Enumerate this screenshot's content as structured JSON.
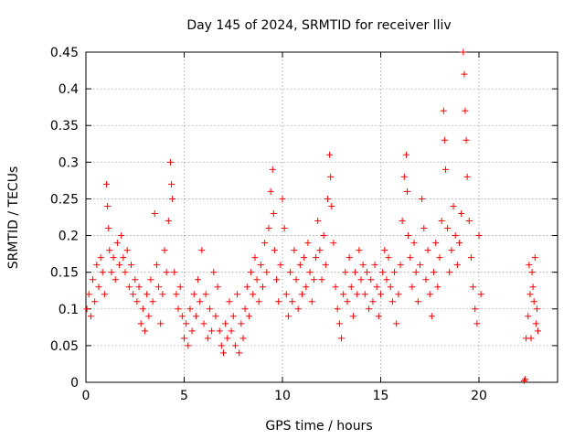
{
  "chart_data": {
    "type": "scatter",
    "title": "Day 145 of 2024, SRMTID for receiver lliv",
    "xlabel": "GPS time / hours",
    "ylabel": "SRMTID / TECUs",
    "xlim": [
      0,
      24
    ],
    "ylim": [
      0,
      0.45
    ],
    "xticks": [
      0,
      5,
      10,
      15,
      20
    ],
    "yticks": [
      0,
      0.05,
      0.1,
      0.15,
      0.2,
      0.25,
      0.3,
      0.35,
      0.4,
      0.45
    ],
    "xtick_labels": [
      "0",
      "5",
      "10",
      "15",
      "20"
    ],
    "ytick_labels": [
      "0",
      "0.05",
      "0.1",
      "0.15",
      "0.2",
      "0.25",
      "0.3",
      "0.35",
      "0.4",
      "0.45"
    ],
    "grid": true,
    "marker": "+",
    "color": "#ff0000",
    "series": [
      {
        "name": "SRMTID",
        "points": [
          [
            0.05,
            0.1
          ],
          [
            0.15,
            0.12
          ],
          [
            0.25,
            0.09
          ],
          [
            0.35,
            0.14
          ],
          [
            0.45,
            0.11
          ],
          [
            0.55,
            0.16
          ],
          [
            0.65,
            0.13
          ],
          [
            0.75,
            0.17
          ],
          [
            0.85,
            0.15
          ],
          [
            0.95,
            0.12
          ],
          [
            1.05,
            0.27
          ],
          [
            1.1,
            0.24
          ],
          [
            1.15,
            0.21
          ],
          [
            1.2,
            0.18
          ],
          [
            1.3,
            0.15
          ],
          [
            1.4,
            0.17
          ],
          [
            1.5,
            0.14
          ],
          [
            1.6,
            0.19
          ],
          [
            1.7,
            0.16
          ],
          [
            1.8,
            0.2
          ],
          [
            1.9,
            0.17
          ],
          [
            2.0,
            0.15
          ],
          [
            2.1,
            0.18
          ],
          [
            2.2,
            0.13
          ],
          [
            2.3,
            0.16
          ],
          [
            2.4,
            0.12
          ],
          [
            2.5,
            0.14
          ],
          [
            2.6,
            0.11
          ],
          [
            2.7,
            0.13
          ],
          [
            2.8,
            0.08
          ],
          [
            2.9,
            0.1
          ],
          [
            3.0,
            0.07
          ],
          [
            3.1,
            0.12
          ],
          [
            3.2,
            0.09
          ],
          [
            3.3,
            0.14
          ],
          [
            3.4,
            0.11
          ],
          [
            3.5,
            0.23
          ],
          [
            3.6,
            0.16
          ],
          [
            3.7,
            0.13
          ],
          [
            3.8,
            0.08
          ],
          [
            3.9,
            0.12
          ],
          [
            4.0,
            0.18
          ],
          [
            4.1,
            0.15
          ],
          [
            4.2,
            0.22
          ],
          [
            4.3,
            0.3
          ],
          [
            4.35,
            0.27
          ],
          [
            4.4,
            0.25
          ],
          [
            4.5,
            0.15
          ],
          [
            4.6,
            0.12
          ],
          [
            4.7,
            0.1
          ],
          [
            4.8,
            0.13
          ],
          [
            4.9,
            0.09
          ],
          [
            5.0,
            0.06
          ],
          [
            5.1,
            0.08
          ],
          [
            5.2,
            0.05
          ],
          [
            5.3,
            0.1
          ],
          [
            5.4,
            0.07
          ],
          [
            5.5,
            0.12
          ],
          [
            5.6,
            0.09
          ],
          [
            5.7,
            0.14
          ],
          [
            5.8,
            0.11
          ],
          [
            5.9,
            0.18
          ],
          [
            6.0,
            0.08
          ],
          [
            6.1,
            0.12
          ],
          [
            6.2,
            0.06
          ],
          [
            6.3,
            0.1
          ],
          [
            6.4,
            0.07
          ],
          [
            6.5,
            0.15
          ],
          [
            6.6,
            0.09
          ],
          [
            6.7,
            0.13
          ],
          [
            6.8,
            0.07
          ],
          [
            6.9,
            0.05
          ],
          [
            7.0,
            0.04
          ],
          [
            7.1,
            0.08
          ],
          [
            7.2,
            0.06
          ],
          [
            7.3,
            0.11
          ],
          [
            7.4,
            0.07
          ],
          [
            7.5,
            0.09
          ],
          [
            7.6,
            0.05
          ],
          [
            7.7,
            0.12
          ],
          [
            7.8,
            0.04
          ],
          [
            7.9,
            0.08
          ],
          [
            8.0,
            0.06
          ],
          [
            8.1,
            0.1
          ],
          [
            8.2,
            0.13
          ],
          [
            8.3,
            0.09
          ],
          [
            8.4,
            0.15
          ],
          [
            8.5,
            0.12
          ],
          [
            8.6,
            0.17
          ],
          [
            8.7,
            0.14
          ],
          [
            8.8,
            0.11
          ],
          [
            8.9,
            0.16
          ],
          [
            9.0,
            0.13
          ],
          [
            9.1,
            0.19
          ],
          [
            9.2,
            0.15
          ],
          [
            9.3,
            0.21
          ],
          [
            9.4,
            0.26
          ],
          [
            9.5,
            0.29
          ],
          [
            9.55,
            0.23
          ],
          [
            9.6,
            0.18
          ],
          [
            9.7,
            0.14
          ],
          [
            9.8,
            0.11
          ],
          [
            9.9,
            0.16
          ],
          [
            10.0,
            0.25
          ],
          [
            10.1,
            0.21
          ],
          [
            10.2,
            0.12
          ],
          [
            10.3,
            0.09
          ],
          [
            10.4,
            0.15
          ],
          [
            10.5,
            0.11
          ],
          [
            10.6,
            0.18
          ],
          [
            10.7,
            0.14
          ],
          [
            10.8,
            0.1
          ],
          [
            10.9,
            0.16
          ],
          [
            11.0,
            0.12
          ],
          [
            11.1,
            0.17
          ],
          [
            11.2,
            0.13
          ],
          [
            11.3,
            0.19
          ],
          [
            11.4,
            0.15
          ],
          [
            11.5,
            0.11
          ],
          [
            11.6,
            0.14
          ],
          [
            11.7,
            0.17
          ],
          [
            11.8,
            0.22
          ],
          [
            11.9,
            0.18
          ],
          [
            12.0,
            0.14
          ],
          [
            12.1,
            0.2
          ],
          [
            12.2,
            0.16
          ],
          [
            12.3,
            0.25
          ],
          [
            12.4,
            0.31
          ],
          [
            12.45,
            0.28
          ],
          [
            12.5,
            0.24
          ],
          [
            12.6,
            0.19
          ],
          [
            12.7,
            0.13
          ],
          [
            12.8,
            0.1
          ],
          [
            12.9,
            0.08
          ],
          [
            13.0,
            0.06
          ],
          [
            13.1,
            0.12
          ],
          [
            13.2,
            0.15
          ],
          [
            13.3,
            0.11
          ],
          [
            13.4,
            0.17
          ],
          [
            13.5,
            0.13
          ],
          [
            13.6,
            0.09
          ],
          [
            13.7,
            0.15
          ],
          [
            13.8,
            0.12
          ],
          [
            13.9,
            0.18
          ],
          [
            14.0,
            0.14
          ],
          [
            14.1,
            0.16
          ],
          [
            14.2,
            0.12
          ],
          [
            14.3,
            0.15
          ],
          [
            14.4,
            0.1
          ],
          [
            14.5,
            0.14
          ],
          [
            14.6,
            0.11
          ],
          [
            14.7,
            0.16
          ],
          [
            14.8,
            0.13
          ],
          [
            14.9,
            0.09
          ],
          [
            15.0,
            0.12
          ],
          [
            15.1,
            0.15
          ],
          [
            15.2,
            0.18
          ],
          [
            15.3,
            0.14
          ],
          [
            15.4,
            0.17
          ],
          [
            15.5,
            0.13
          ],
          [
            15.6,
            0.11
          ],
          [
            15.7,
            0.15
          ],
          [
            15.8,
            0.08
          ],
          [
            15.9,
            0.12
          ],
          [
            16.0,
            0.16
          ],
          [
            16.1,
            0.22
          ],
          [
            16.2,
            0.28
          ],
          [
            16.3,
            0.31
          ],
          [
            16.35,
            0.26
          ],
          [
            16.4,
            0.2
          ],
          [
            16.5,
            0.17
          ],
          [
            16.6,
            0.13
          ],
          [
            16.7,
            0.19
          ],
          [
            16.8,
            0.15
          ],
          [
            16.9,
            0.11
          ],
          [
            17.0,
            0.16
          ],
          [
            17.1,
            0.25
          ],
          [
            17.2,
            0.21
          ],
          [
            17.3,
            0.14
          ],
          [
            17.4,
            0.18
          ],
          [
            17.5,
            0.12
          ],
          [
            17.6,
            0.09
          ],
          [
            17.7,
            0.15
          ],
          [
            17.8,
            0.19
          ],
          [
            17.9,
            0.13
          ],
          [
            18.0,
            0.17
          ],
          [
            18.1,
            0.22
          ],
          [
            18.2,
            0.37
          ],
          [
            18.25,
            0.33
          ],
          [
            18.3,
            0.29
          ],
          [
            18.4,
            0.21
          ],
          [
            18.5,
            0.15
          ],
          [
            18.6,
            0.18
          ],
          [
            18.7,
            0.24
          ],
          [
            18.8,
            0.2
          ],
          [
            18.9,
            0.16
          ],
          [
            19.0,
            0.19
          ],
          [
            19.1,
            0.23
          ],
          [
            19.2,
            0.45
          ],
          [
            19.25,
            0.42
          ],
          [
            19.3,
            0.37
          ],
          [
            19.35,
            0.33
          ],
          [
            19.4,
            0.28
          ],
          [
            19.5,
            0.22
          ],
          [
            19.6,
            0.17
          ],
          [
            19.7,
            0.13
          ],
          [
            19.8,
            0.1
          ],
          [
            19.9,
            0.08
          ],
          [
            20.0,
            0.2
          ],
          [
            20.1,
            0.12
          ],
          [
            22.3,
            0.002
          ],
          [
            22.35,
            0.004
          ],
          [
            22.4,
            0.06
          ],
          [
            22.5,
            0.09
          ],
          [
            22.6,
            0.12
          ],
          [
            22.7,
            0.15
          ],
          [
            22.8,
            0.11
          ],
          [
            22.9,
            0.08
          ],
          [
            23.0,
            0.07
          ],
          [
            22.55,
            0.16
          ],
          [
            22.65,
            0.06
          ],
          [
            22.75,
            0.13
          ],
          [
            22.85,
            0.17
          ],
          [
            22.95,
            0.1
          ]
        ]
      }
    ]
  }
}
